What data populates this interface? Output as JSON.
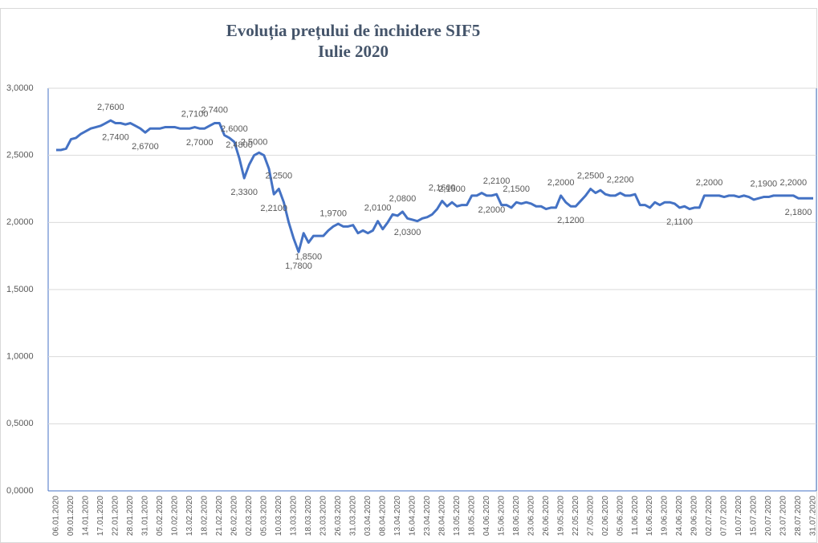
{
  "chart_data": {
    "type": "line",
    "title": "Evoluția prețului de închidere SIF5",
    "subtitle": "Iulie 2020",
    "categories": [
      "06.01.2020",
      null,
      null,
      "09.01.2020",
      null,
      null,
      "14.01.2020",
      null,
      null,
      "17.01.2020",
      null,
      null,
      "22.01.2020",
      null,
      null,
      "28.01.2020",
      null,
      null,
      "31.01.2020",
      null,
      null,
      "05.02.2020",
      null,
      null,
      "10.02.2020",
      null,
      null,
      "13.02.2020",
      null,
      null,
      "18.02.2020",
      null,
      null,
      "21.02.2020",
      null,
      null,
      "26.02.2020",
      null,
      null,
      "02.03.2020",
      null,
      null,
      "05.03.2020",
      null,
      null,
      "10.03.2020",
      null,
      null,
      "13.03.2020",
      null,
      null,
      "18.03.2020",
      null,
      null,
      "23.03.2020",
      null,
      null,
      "26.03.2020",
      null,
      null,
      "31.03.2020",
      null,
      null,
      "03.04.2020",
      null,
      null,
      "08.04.2020",
      null,
      null,
      "13.04.2020",
      null,
      null,
      "16.04.2020",
      null,
      null,
      "23.04.2020",
      null,
      null,
      "28.04.2020",
      null,
      null,
      "13.05.2020",
      null,
      null,
      "18.05.2020",
      null,
      null,
      "04.06.2020",
      null,
      null,
      "15.06.2020",
      null,
      null,
      "18.06.2020",
      null,
      null,
      "23.06.2020",
      null,
      null,
      "26.06.2020",
      null,
      null,
      "19.05.2020",
      null,
      null,
      "22.05.2020",
      null,
      null,
      "27.05.2020",
      null,
      null,
      "02.06.2020",
      null,
      null,
      "05.06.2020",
      null,
      null,
      "11.06.2020",
      null,
      null,
      "16.06.2020",
      null,
      null,
      "19.06.2020",
      null,
      null,
      "24.06.2020",
      null,
      null,
      "29.06.2020",
      null,
      null,
      "02.07.2020",
      null,
      null,
      "07.07.2020",
      null,
      null,
      "10.07.2020",
      null,
      null,
      "15.07.2020",
      null,
      null,
      "20.07.2020",
      null,
      null,
      "23.07.2020",
      null,
      null,
      "28.07.2020",
      null,
      null,
      "31.07.2020"
    ],
    "series": [
      {
        "color": "#4472c4",
        "values": [
          2.54,
          2.54,
          2.55,
          2.62,
          2.63,
          2.66,
          2.68,
          2.7,
          2.71,
          2.72,
          2.74,
          2.76,
          2.74,
          2.74,
          2.73,
          2.74,
          2.72,
          2.7,
          2.67,
          2.7,
          2.7,
          2.7,
          2.71,
          2.71,
          2.71,
          2.7,
          2.7,
          2.7,
          2.71,
          2.7,
          2.7,
          2.72,
          2.74,
          2.74,
          2.65,
          2.63,
          2.6,
          2.48,
          2.33,
          2.43,
          2.5,
          2.52,
          2.5,
          2.4,
          2.21,
          2.25,
          2.15,
          2.0,
          1.88,
          1.78,
          1.92,
          1.85,
          1.9,
          1.9,
          1.9,
          1.94,
          1.97,
          1.99,
          1.97,
          1.97,
          1.98,
          1.92,
          1.94,
          1.92,
          1.94,
          2.01,
          1.95,
          2.0,
          2.06,
          2.05,
          2.08,
          2.03,
          2.02,
          2.01,
          2.03,
          2.04,
          2.06,
          2.1,
          2.16,
          2.12,
          2.15,
          2.12,
          2.13,
          2.13,
          2.2,
          2.2,
          2.22,
          2.2,
          2.2,
          2.21,
          2.13,
          2.13,
          2.11,
          2.15,
          2.14,
          2.15,
          2.14,
          2.12,
          2.12,
          2.1,
          2.11,
          2.11,
          2.2,
          2.15,
          2.12,
          2.12,
          2.16,
          2.2,
          2.25,
          2.22,
          2.24,
          2.21,
          2.2,
          2.2,
          2.22,
          2.2,
          2.2,
          2.21,
          2.13,
          2.13,
          2.11,
          2.15,
          2.13,
          2.15,
          2.15,
          2.14,
          2.11,
          2.12,
          2.1,
          2.11,
          2.11,
          2.2,
          2.2,
          2.2,
          2.2,
          2.19,
          2.2,
          2.2,
          2.19,
          2.2,
          2.19,
          2.17,
          2.18,
          2.19,
          2.19,
          2.2,
          2.2,
          2.2,
          2.2,
          2.2,
          2.18,
          2.18,
          2.18,
          2.18
        ],
        "value_labels": [
          null,
          null,
          null,
          null,
          null,
          null,
          null,
          null,
          null,
          null,
          null,
          "2,7600",
          "2,7400",
          null,
          null,
          null,
          null,
          null,
          "2,6700",
          null,
          null,
          null,
          null,
          null,
          null,
          null,
          null,
          null,
          "2,7100",
          "2,7000",
          null,
          null,
          "2,7400",
          null,
          null,
          null,
          "2,6000",
          "2,4800",
          "2,3300",
          null,
          "2,5000",
          null,
          null,
          null,
          "2,2100",
          "2,2500",
          null,
          null,
          null,
          "1,7800",
          null,
          "1,8500",
          null,
          null,
          null,
          null,
          "1,9700",
          null,
          null,
          null,
          null,
          null,
          null,
          null,
          null,
          "2,0100",
          null,
          null,
          null,
          null,
          "2,0800",
          "2,0300",
          null,
          null,
          null,
          null,
          null,
          null,
          "2,1600",
          null,
          "2,1500",
          null,
          null,
          null,
          null,
          null,
          null,
          null,
          "2,2000",
          "2,2100",
          null,
          null,
          null,
          "2,1500",
          null,
          null,
          null,
          null,
          null,
          null,
          null,
          null,
          "2,2000",
          null,
          "2,1200",
          null,
          null,
          null,
          "2,2500",
          null,
          null,
          null,
          null,
          null,
          "2,2200",
          null,
          null,
          null,
          null,
          null,
          null,
          null,
          null,
          null,
          null,
          null,
          "2,1100",
          null,
          null,
          null,
          null,
          null,
          "2,2000",
          null,
          null,
          null,
          null,
          null,
          null,
          null,
          null,
          null,
          null,
          "2,1900",
          null,
          null,
          null,
          null,
          null,
          "2,2000",
          "2,1800",
          null,
          null,
          null
        ]
      }
    ],
    "ylim": [
      0,
      3
    ],
    "yticks": [
      {
        "value": 0,
        "label": "0,0000"
      },
      {
        "value": 0.5,
        "label": "0,5000"
      },
      {
        "value": 1,
        "label": "1,0000"
      },
      {
        "value": 1.5,
        "label": "1,5000"
      },
      {
        "value": 2,
        "label": "2,0000"
      },
      {
        "value": 2.5,
        "label": "2,5000"
      },
      {
        "value": 3,
        "label": "3,0000"
      }
    ],
    "grid": true
  }
}
